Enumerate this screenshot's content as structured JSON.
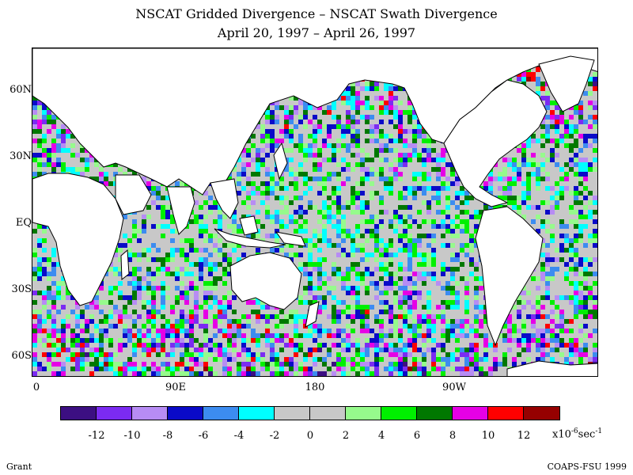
{
  "header": {
    "title": "NSCAT Gridded Divergence – NSCAT Swath Divergence",
    "subtitle": "April 20, 1997 – April 26, 1997"
  },
  "axes": {
    "y_ticks": [
      "60N",
      "30N",
      "EQ",
      "30S",
      "60S"
    ],
    "x_ticks": [
      "0",
      "90E",
      "180",
      "90W"
    ]
  },
  "colorbar": {
    "colors": [
      "#3c0f82",
      "#7b2bf2",
      "#b78cf4",
      "#0a0ac8",
      "#3c8cf0",
      "#00ffff",
      "#c8c8c8",
      "#c8c8c8",
      "#96fa8c",
      "#00f000",
      "#007800",
      "#e600e6",
      "#ff0000",
      "#960000"
    ],
    "labels": [
      "-12",
      "-10",
      "-8",
      "-6",
      "-4",
      "-2",
      "0",
      "2",
      "4",
      "6",
      "8",
      "10",
      "12"
    ],
    "units_text": "x10",
    "units_exp": "-6",
    "units_rest": "sec",
    "units_exp2": "-1"
  },
  "footer": {
    "left": "Grant",
    "right": "COAPS-FSU 1999"
  }
}
